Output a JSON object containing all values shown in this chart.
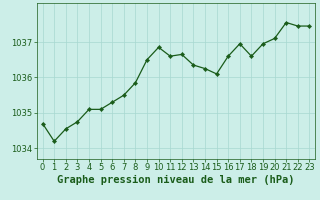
{
  "x": [
    0,
    1,
    2,
    3,
    4,
    5,
    6,
    7,
    8,
    9,
    10,
    11,
    12,
    13,
    14,
    15,
    16,
    17,
    18,
    19,
    20,
    21,
    22,
    23
  ],
  "y": [
    1034.7,
    1034.2,
    1034.55,
    1034.75,
    1035.1,
    1035.1,
    1035.3,
    1035.5,
    1035.85,
    1036.5,
    1036.85,
    1036.6,
    1036.65,
    1036.35,
    1036.25,
    1036.1,
    1036.6,
    1036.95,
    1036.6,
    1036.95,
    1037.1,
    1037.55,
    1037.45,
    1037.45
  ],
  "line_color": "#1a5c1a",
  "marker_color": "#1a5c1a",
  "bg_color": "#cceee8",
  "grid_color": "#a8d8d0",
  "xlabel": "Graphe pression niveau de la mer (hPa)",
  "xlabel_color": "#1a5c1a",
  "xlabel_fontsize": 7.5,
  "tick_color": "#1a5c1a",
  "tick_fontsize": 6.0,
  "ylim": [
    1033.7,
    1038.1
  ],
  "xlim": [
    -0.5,
    23.5
  ],
  "yticks": [
    1034,
    1035,
    1036,
    1037
  ],
  "xticks": [
    0,
    1,
    2,
    3,
    4,
    5,
    6,
    7,
    8,
    9,
    10,
    11,
    12,
    13,
    14,
    15,
    16,
    17,
    18,
    19,
    20,
    21,
    22,
    23
  ]
}
